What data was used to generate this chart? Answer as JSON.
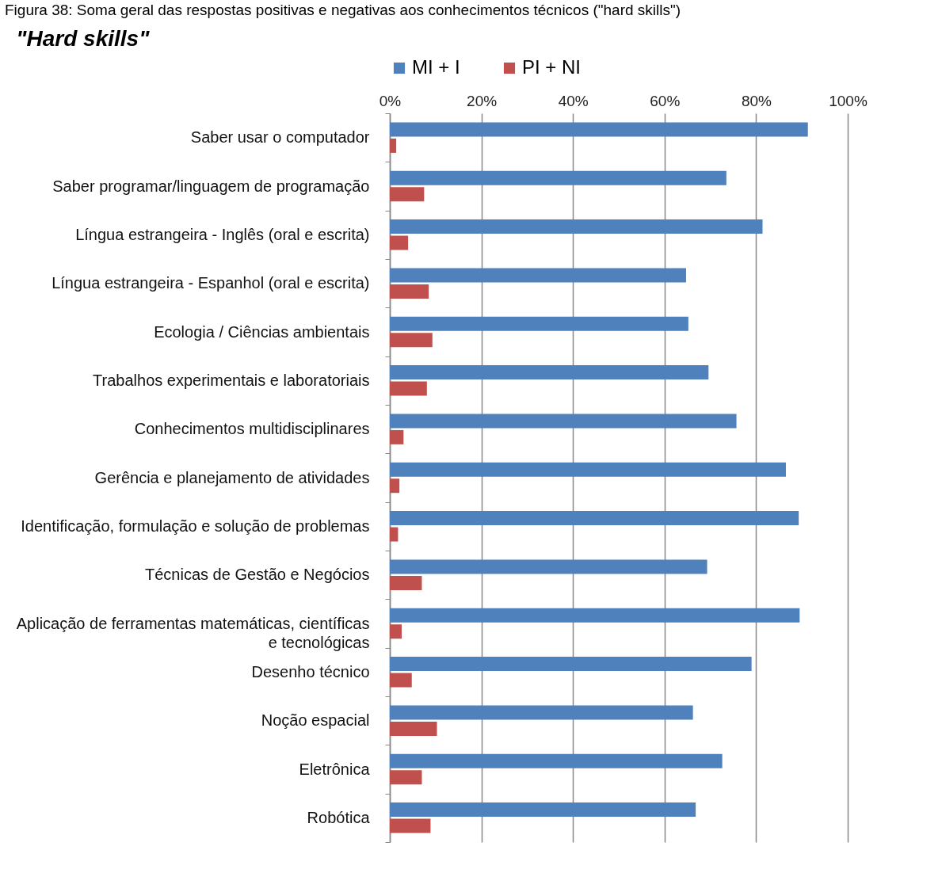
{
  "chart_data": {
    "type": "bar",
    "orientation": "horizontal",
    "title": "\"Hard skills\"",
    "annotations": [
      "Figura 38: Soma geral das respostas positivas e negativas aos conhecimentos técnicos (\"hard skills\")"
    ],
    "categories": [
      "Saber usar o computador",
      "Saber programar/linguagem de programação",
      "Língua estrangeira - Inglês (oral e escrita)",
      "Língua estrangeira - Espanhol (oral e escrita)",
      "Ecologia / Ciências ambientais",
      "Trabalhos experimentais e laboratoriais",
      "Conhecimentos multidisciplinares",
      "Gerência e planejamento de atividades",
      "Identificação, formulação e solução de problemas",
      "Técnicas de Gestão e Negócios",
      "Aplicação de ferramentas matemáticas, científicas e tecnológicas",
      "Desenho técnico",
      "Noção espacial",
      "Eletrônica",
      "Robótica"
    ],
    "series": [
      {
        "name": "MI + I",
        "color": "#4f81bd",
        "values": [
          91.3,
          73.5,
          81.4,
          64.7,
          65.2,
          69.6,
          75.7,
          86.5,
          89.3,
          69.3,
          89.5,
          79.0,
          66.2,
          72.6,
          66.8
        ]
      },
      {
        "name": "PI + NI",
        "color": "#c0504d",
        "values": [
          1.4,
          7.5,
          4.0,
          8.5,
          9.3,
          8.1,
          3.0,
          2.1,
          1.8,
          7.0,
          2.6,
          4.8,
          10.3,
          7.0,
          8.9
        ]
      }
    ],
    "xlim": [
      0,
      100
    ],
    "xticks": [
      {
        "value": 0,
        "label": "0%"
      },
      {
        "value": 20,
        "label": "20%"
      },
      {
        "value": 40,
        "label": "40%"
      },
      {
        "value": 60,
        "label": "60%"
      },
      {
        "value": 80,
        "label": "80%"
      },
      {
        "value": 100,
        "label": "100%"
      }
    ],
    "grid": "x",
    "legend": "top"
  }
}
